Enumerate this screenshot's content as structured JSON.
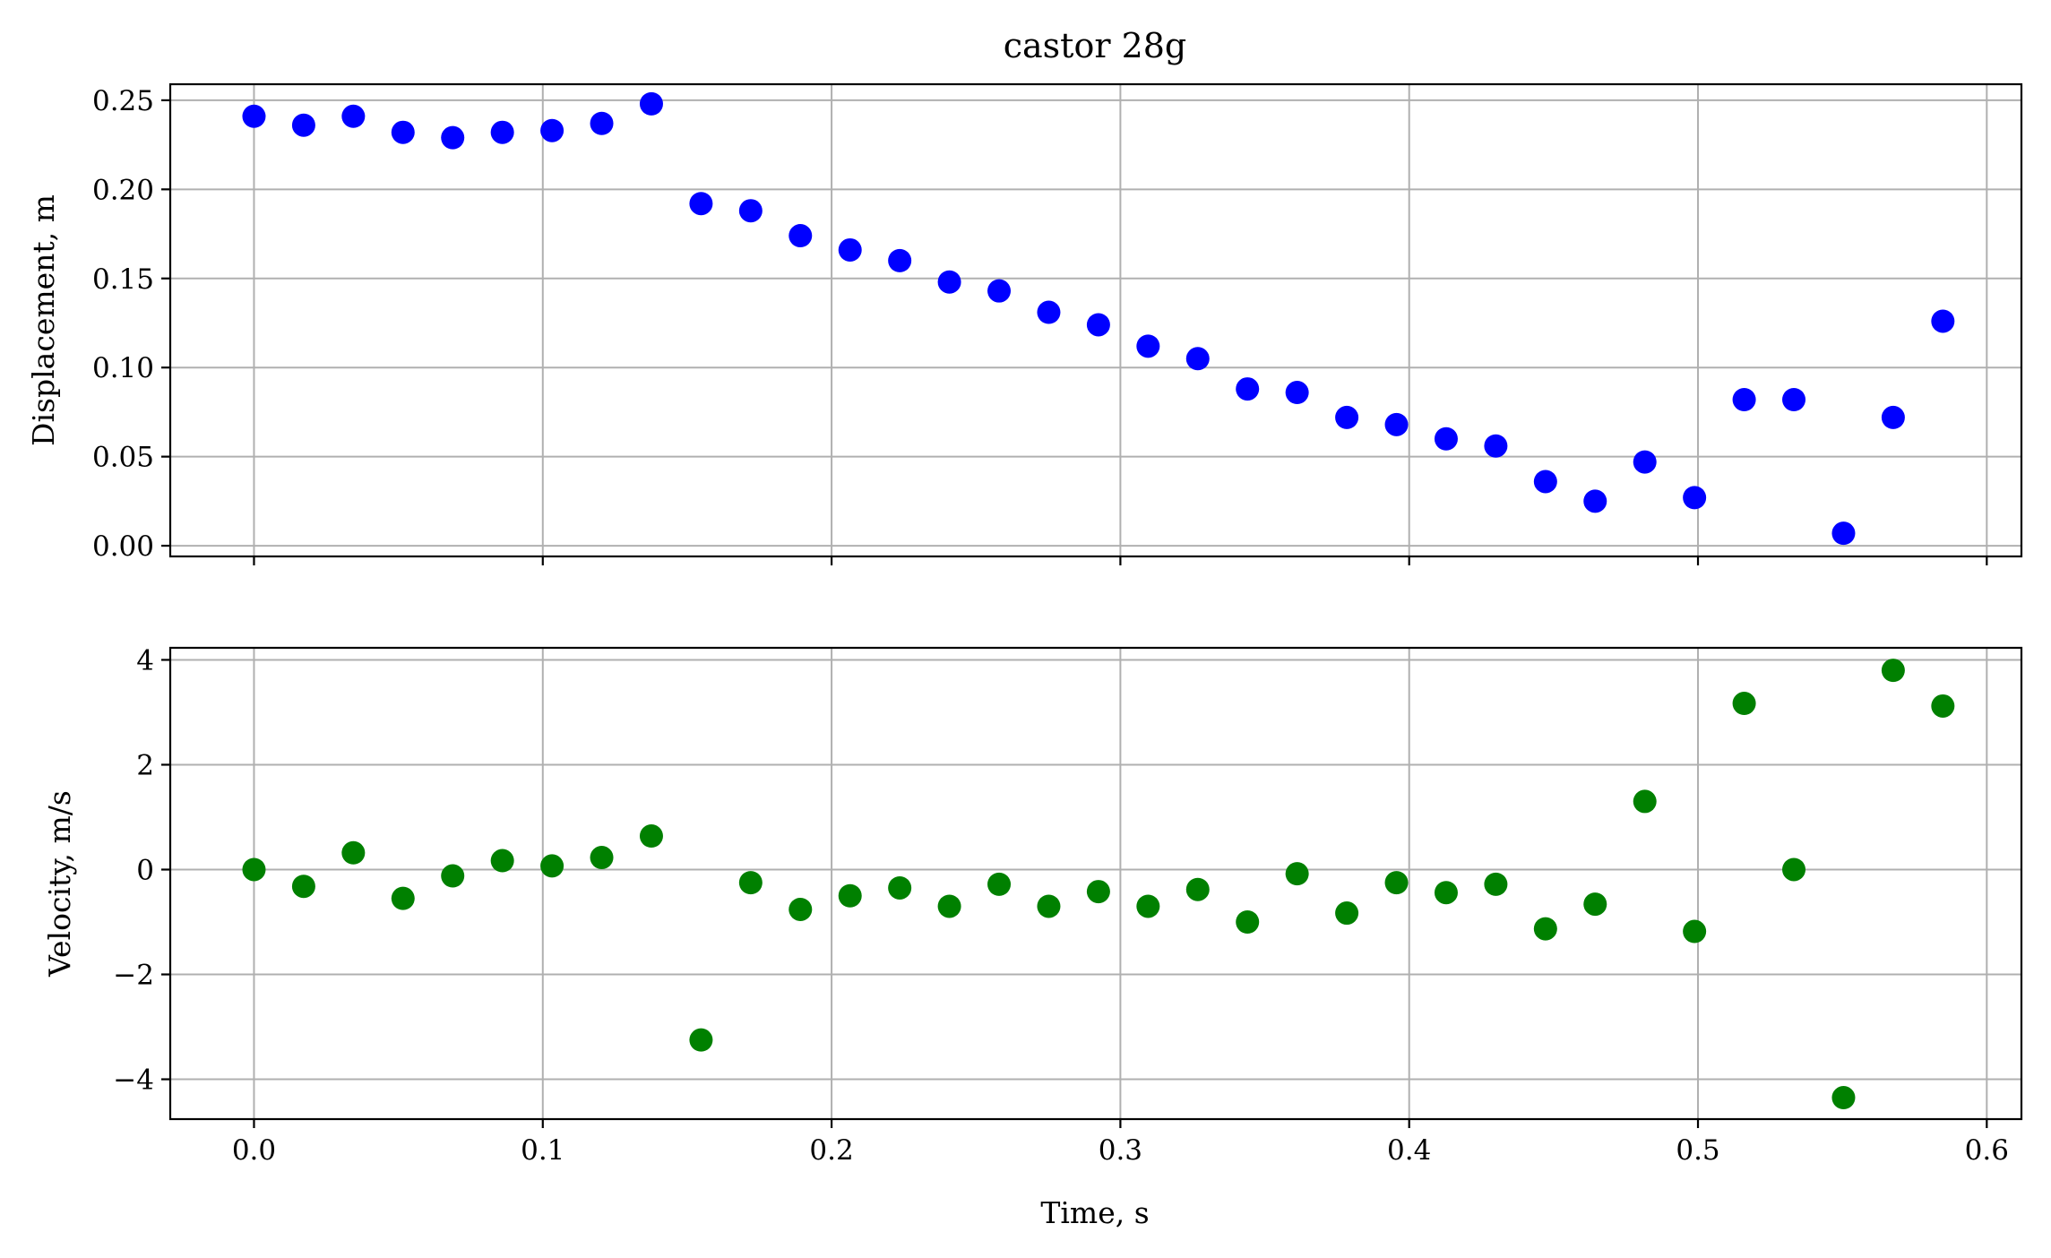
{
  "chart_data": {
    "type": "scatter",
    "title": "castor 28g",
    "xlabel": "Time, s",
    "xlim": [
      -0.029,
      0.612
    ],
    "xticks": [
      0.0,
      0.1,
      0.2,
      0.3,
      0.4,
      0.5,
      0.6
    ],
    "xtick_labels": [
      "0.0",
      "0.1",
      "0.2",
      "0.3",
      "0.4",
      "0.5",
      "0.6"
    ],
    "grid": true,
    "x": [
      0.0,
      0.0172,
      0.0344,
      0.0516,
      0.0688,
      0.086,
      0.1032,
      0.1204,
      0.1376,
      0.1548,
      0.172,
      0.1892,
      0.2064,
      0.2236,
      0.2408,
      0.258,
      0.2752,
      0.2924,
      0.3096,
      0.3268,
      0.344,
      0.3612,
      0.3784,
      0.3956,
      0.4128,
      0.43,
      0.4472,
      0.4644,
      0.4816,
      0.4988,
      0.516,
      0.5332,
      0.5504,
      0.5676,
      0.5848
    ],
    "panels": [
      {
        "ylabel": "Displacement, m",
        "ylim": [
          -0.006,
          0.259
        ],
        "yticks": [
          0.0,
          0.05,
          0.1,
          0.15,
          0.2,
          0.25
        ],
        "ytick_labels": [
          "0.00",
          "0.05",
          "0.10",
          "0.15",
          "0.20",
          "0.25"
        ],
        "color": "#0000ff",
        "values": [
          0.241,
          0.236,
          0.241,
          0.232,
          0.229,
          0.232,
          0.233,
          0.237,
          0.248,
          0.192,
          0.188,
          0.174,
          0.166,
          0.16,
          0.148,
          0.143,
          0.131,
          0.124,
          0.112,
          0.105,
          0.088,
          0.086,
          0.072,
          0.068,
          0.06,
          0.056,
          0.036,
          0.025,
          0.047,
          0.027,
          0.082,
          0.082,
          0.007,
          0.072,
          0.126
        ]
      },
      {
        "ylabel": "Velocity, m/s",
        "ylim": [
          -4.76,
          4.23
        ],
        "yticks": [
          -4,
          -2,
          0,
          2,
          4
        ],
        "ytick_labels": [
          "−4",
          "−2",
          "0",
          "2",
          "4"
        ],
        "color": "#008000",
        "values": [
          0.0,
          -0.32,
          0.32,
          -0.55,
          -0.12,
          0.17,
          0.07,
          0.23,
          0.64,
          -3.25,
          -0.25,
          -0.76,
          -0.5,
          -0.35,
          -0.7,
          -0.28,
          -0.7,
          -0.42,
          -0.7,
          -0.38,
          -1.0,
          -0.08,
          -0.83,
          -0.25,
          -0.44,
          -0.28,
          -1.13,
          -0.66,
          1.3,
          -1.18,
          3.17,
          0.0,
          -4.35,
          3.8,
          3.12
        ]
      }
    ]
  }
}
